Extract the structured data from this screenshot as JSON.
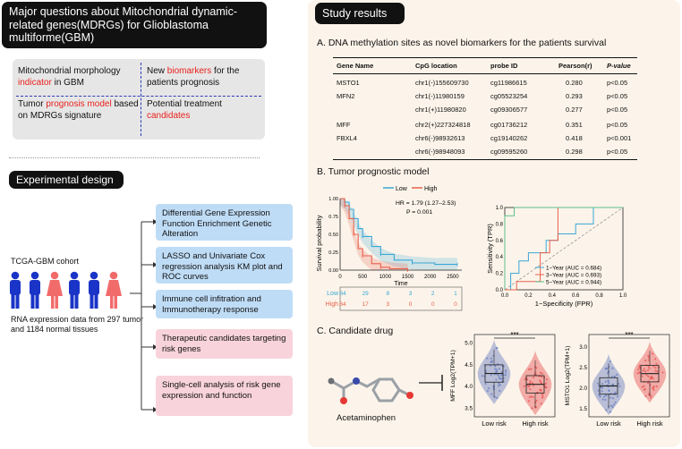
{
  "left": {
    "questions_title": "Major questions about Mitochondrial dynamic-related genes(MDRGs) for Glioblastoma multiforme(GBM)",
    "q1_pre": "Mitochondrial morphology",
    "q1_red": "indicator",
    "q1_post": "in GBM",
    "q2_pre": "New",
    "q2_red": "biomarkers",
    "q2_post": "for the patients prognosis",
    "q3_pre": "Tumor",
    "q3_red": "prognosis model",
    "q3_post": "based on MDRGs signature",
    "q4_pre": "Potential treatment",
    "q4_red": "candidates",
    "design_title": "Experimental design",
    "cohort_label": "TCGA-GBM cohort",
    "rna_text": "RNA expression data from 297 tumor and 1184 normal tissues",
    "steps": [
      "Differential Gene Expression Function Enrichment Genetic Alteration",
      "LASSO and Univariate Cox regression analysis KM plot and ROC curves",
      "Immune cell infitration and Immunotherapy response",
      "Therapeutic candidates targeting risk genes",
      "Single-cell analysis of risk gene expression and function"
    ]
  },
  "right": {
    "results_title": "Study results",
    "sectionA": "A. DNA methylation sites as novel biomarkers for the patients survival",
    "table_headers": [
      "Gene Name",
      "CpG location",
      "probe ID",
      "Pearson(r)",
      "P-value"
    ],
    "table_rows": [
      [
        "MSTO1",
        "chr1(-)155609730",
        "cg11986615",
        "0.280",
        "p<0.05"
      ],
      [
        "MFN2",
        "chr1(-)11980159",
        "cg05523254",
        "0.293",
        "p<0.05"
      ],
      [
        "",
        "chr1(+)11980820",
        "cg09306577",
        "0.277",
        "p<0.05"
      ],
      [
        "MFF",
        "chr2(+)227324818",
        "cg01736212",
        "0.351",
        "p<0.05"
      ],
      [
        "FBXL4",
        "chr6(-)98932613",
        "cg19140262",
        "0.418",
        "p<0.001"
      ],
      [
        "",
        "chr6(-)98948093",
        "cg09595260",
        "0.298",
        "p<0.05"
      ]
    ],
    "sectionB": "B. Tumor prognostic model",
    "sectionC": "C. Candidate drug",
    "drug_name": "Acetaminophen"
  },
  "chart_data": [
    {
      "type": "line",
      "title": "Kaplan-Meier survival",
      "xlabel": "Time",
      "ylabel": "Survival probability",
      "xlim": [
        0,
        2700
      ],
      "ylim": [
        0,
        1
      ],
      "x_ticks": [
        "0",
        "500",
        "1000",
        "1500",
        "2000",
        "2500"
      ],
      "y_ticks": [
        "0.00",
        "0.25",
        "0.50",
        "0.75",
        "1.00"
      ],
      "legend": [
        "Low",
        "High"
      ],
      "hr_text": "HR = 1.79 (1.27–2.53)",
      "p_text": "P = 0.001",
      "series": [
        {
          "name": "Low",
          "color": "#3aa7d6",
          "x": [
            0,
            100,
            200,
            300,
            400,
            500,
            700,
            900,
            1200,
            1600,
            2100,
            2600
          ],
          "y": [
            1.0,
            0.95,
            0.85,
            0.72,
            0.58,
            0.47,
            0.33,
            0.22,
            0.14,
            0.1,
            0.08,
            0.08
          ]
        },
        {
          "name": "High",
          "color": "#e8604c",
          "x": [
            0,
            100,
            200,
            300,
            400,
            500,
            700,
            900,
            1100,
            1500
          ],
          "y": [
            1.0,
            0.9,
            0.72,
            0.5,
            0.3,
            0.2,
            0.09,
            0.04,
            0.02,
            0.0
          ]
        }
      ],
      "risk_table": {
        "Low": [
          "84",
          "29",
          "8",
          "3",
          "2",
          "1"
        ],
        "High": [
          "84",
          "17",
          "3",
          "0",
          "0",
          "0"
        ]
      }
    },
    {
      "type": "line",
      "title": "ROC curves",
      "xlabel": "1−Specificity (FPR)",
      "ylabel": "Sensitivity (TPR)",
      "xlim": [
        0,
        1
      ],
      "ylim": [
        0,
        1
      ],
      "x_ticks": [
        "0.0",
        "0.2",
        "0.4",
        "0.6",
        "0.8",
        "1.0"
      ],
      "y_ticks": [
        "0.0",
        "0.2",
        "0.4",
        "0.6",
        "0.8",
        "1.0"
      ],
      "series": [
        {
          "name": "1−Year (AUC = 0.684)",
          "color": "#3aa7d6",
          "x": [
            0,
            0.05,
            0.05,
            0.12,
            0.12,
            0.2,
            0.2,
            0.35,
            0.35,
            0.45,
            0.45,
            0.6,
            0.6,
            0.75,
            0.75,
            1.0
          ],
          "y": [
            0,
            0,
            0.2,
            0.2,
            0.35,
            0.35,
            0.45,
            0.45,
            0.6,
            0.6,
            0.68,
            0.68,
            0.8,
            0.8,
            1.0,
            1.0
          ]
        },
        {
          "name": "3−Year (AUC = 0.693)",
          "color": "#e8604c",
          "x": [
            0,
            0.1,
            0.1,
            0.3,
            0.3,
            0.38,
            0.38,
            0.45,
            0.45,
            1.0
          ],
          "y": [
            0,
            0,
            0.1,
            0.1,
            0.45,
            0.45,
            0.6,
            0.6,
            1.0,
            1.0
          ]
        },
        {
          "name": "5−Year (AUC = 0.944)",
          "color": "#5cbf8a",
          "x": [
            0,
            0,
            0.08,
            0.08,
            1.0
          ],
          "y": [
            0,
            0.9,
            0.9,
            1.0,
            1.0
          ]
        }
      ]
    },
    {
      "type": "violin",
      "ylabel": "MFF Log2(TPM+1)",
      "categories": [
        "Low risk",
        "High risk"
      ],
      "y_ticks": [
        "3.5",
        "4.0",
        "4.5",
        "5.0"
      ],
      "ylim": [
        3.3,
        5.2
      ],
      "medians": [
        4.3,
        4.05
      ],
      "significance": "***"
    },
    {
      "type": "violin",
      "ylabel": "MSTO1 Log2(TPM+1)",
      "categories": [
        "Low risk",
        "High risk"
      ],
      "y_ticks": [
        "1.5",
        "2.0",
        "2.5",
        "3.0"
      ],
      "ylim": [
        1.3,
        3.3
      ],
      "medians": [
        2.05,
        2.35
      ],
      "significance": "***"
    }
  ]
}
